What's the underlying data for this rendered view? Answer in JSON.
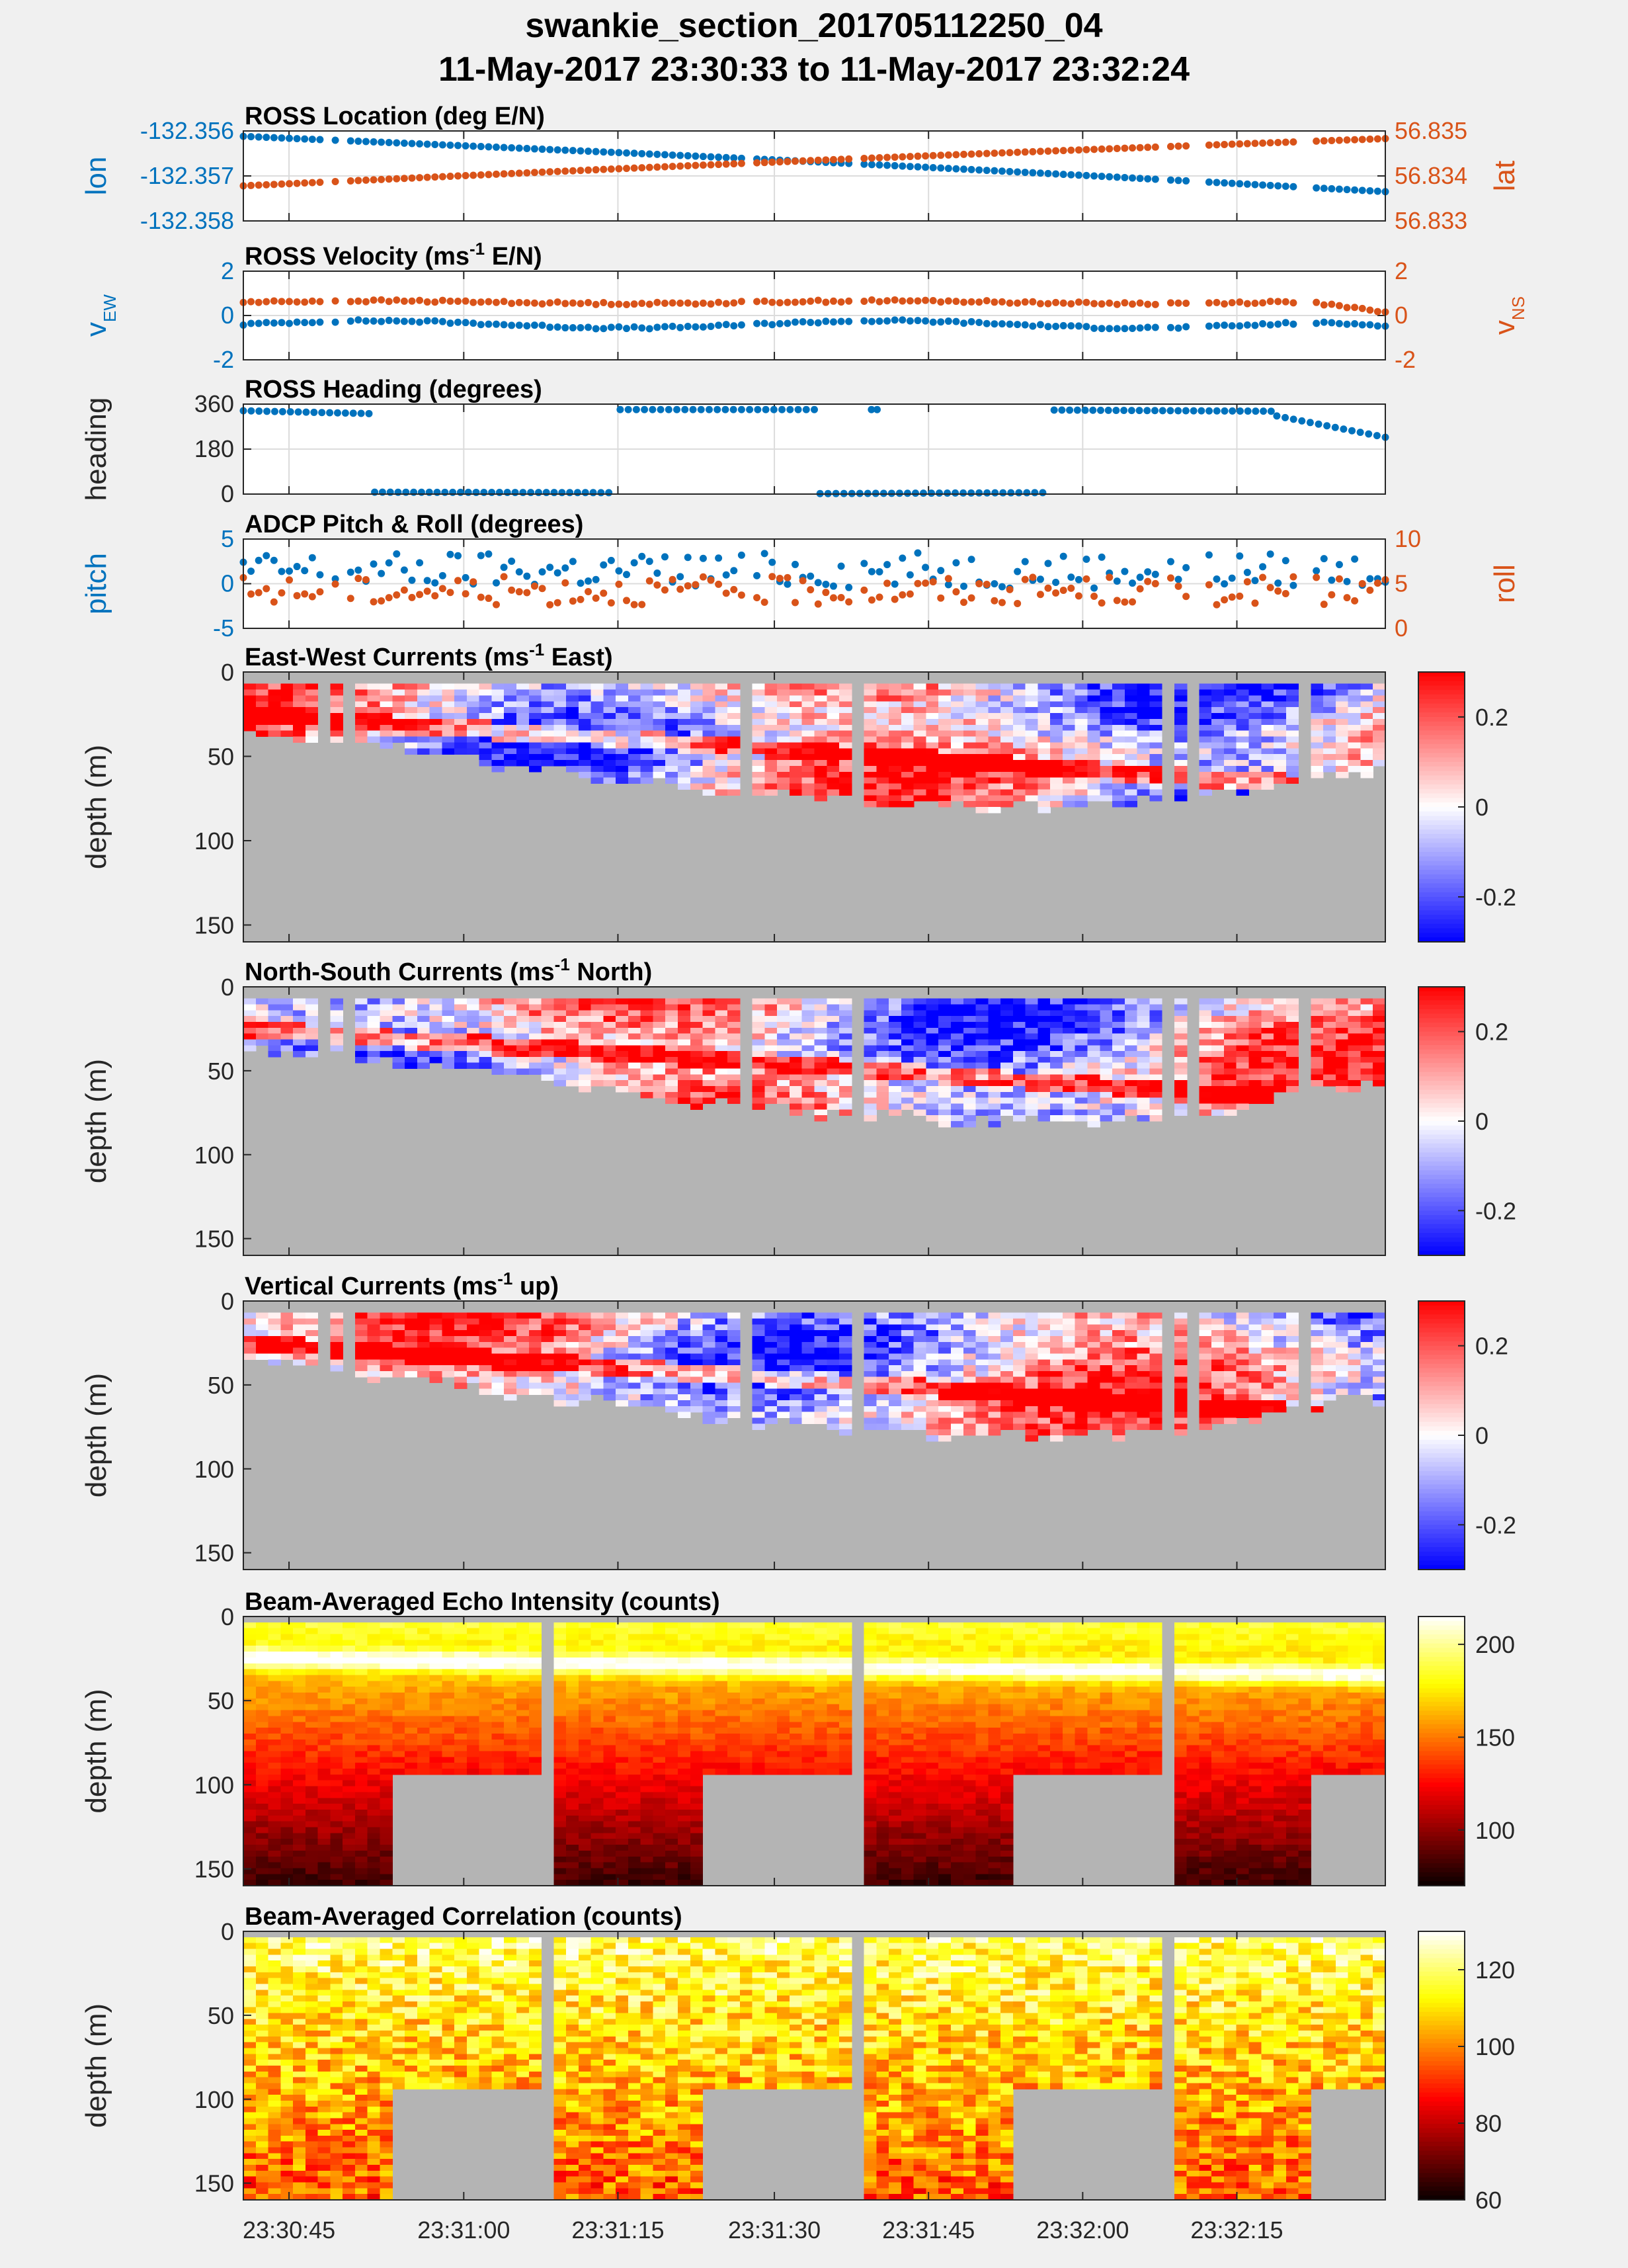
{
  "figure": {
    "title_line1": "swankie_section_201705112250_04",
    "title_line2": "11-May-2017 23:30:33 to 11-May-2017 23:32:24"
  },
  "colors": {
    "blue": "#0072bd",
    "orange": "#d95319",
    "missing": "#b4b4b4",
    "panel_bg": "#ffffff",
    "figure_bg": "#f0f0f0"
  },
  "chart_data": [
    {
      "id": "ross_location",
      "type": "scatter",
      "title": "ROSS Location (deg E/N)",
      "ylabel": "lon",
      "ylabel_right": "lat",
      "ylim": [
        -132.358,
        -132.356
      ],
      "yticks": [
        "-132.356",
        "-132.357",
        "-132.358"
      ],
      "ylim_right": [
        56.833,
        56.835
      ],
      "yticks_right": [
        "56.835",
        "56.834",
        "56.833"
      ],
      "series": [
        {
          "axis": "left",
          "color": "#0072bd",
          "start": -132.35612,
          "end": -132.35735,
          "curve": 5e-05
        },
        {
          "axis": "right",
          "color": "#d95319",
          "start": 56.83378,
          "end": 56.83483,
          "curve": 4e-05
        }
      ],
      "grid": true
    },
    {
      "id": "ross_velocity",
      "type": "scatter",
      "title_parts": [
        "ROSS Velocity (ms",
        "-1",
        " E/N)"
      ],
      "ylabel_parts": [
        "v",
        "EW"
      ],
      "ylabel_right_parts": [
        "v",
        "NS"
      ],
      "ylim": [
        -3,
        3
      ],
      "yticks": [
        "2",
        "0",
        "-2"
      ],
      "ylim_right": [
        -3,
        3
      ],
      "yticks_right": [
        "2",
        "0",
        "-2"
      ],
      "series": [
        {
          "axis": "left",
          "color": "#0072bd",
          "mean": -0.6,
          "amp": 0.4,
          "tail_to": -0.9
        },
        {
          "axis": "right",
          "color": "#d95319",
          "mean": 0.9,
          "amp": 0.15,
          "tail_to": 0.1
        }
      ],
      "grid": true
    },
    {
      "id": "ross_heading",
      "type": "scatter",
      "title": "ROSS Heading (degrees)",
      "ylabel": "heading",
      "ylim": [
        0,
        380
      ],
      "yticks": [
        "360",
        "180",
        "0"
      ],
      "segments": [
        {
          "t0": 0.0,
          "t1": 0.11,
          "y0": 352,
          "y1": 340
        },
        {
          "t0": 0.115,
          "t1": 0.32,
          "y0": 8,
          "y1": 6
        },
        {
          "t0": 0.33,
          "t1": 0.5,
          "y0": 357,
          "y1": 357
        },
        {
          "t0": 0.55,
          "t1": 0.555,
          "y0": 357,
          "y1": 357
        },
        {
          "t0": 0.505,
          "t1": 0.7,
          "y0": 2,
          "y1": 6
        },
        {
          "t0": 0.71,
          "t1": 0.9,
          "y0": 355,
          "y1": 350
        },
        {
          "t0": 0.905,
          "t1": 1.0,
          "y0": 330,
          "y1": 240
        }
      ],
      "grid": true
    },
    {
      "id": "adcp_pitch_roll",
      "type": "scatter",
      "title": "ADCP Pitch & Roll (degrees)",
      "ylabel": "pitch",
      "ylabel_right": "roll",
      "ylim": [
        -5,
        5
      ],
      "yticks": [
        "5",
        "0",
        "-5"
      ],
      "ylim_right": [
        0,
        10
      ],
      "yticks_right": [
        "10",
        "5",
        "0"
      ],
      "series": [
        {
          "axis": "left",
          "color": "#0072bd",
          "mean": 1.5,
          "spread": 2.0
        },
        {
          "axis": "right",
          "color": "#d95319",
          "mean": 4.2,
          "spread": 1.6
        }
      ],
      "grid": true
    },
    {
      "id": "ew_currents",
      "type": "heatmap",
      "title_parts": [
        "East-West Currents (ms",
        "-1",
        " East)"
      ],
      "ylabel": "depth (m)",
      "ylim": [
        0,
        160
      ],
      "yticks": [
        "0",
        "50",
        "100",
        "150"
      ],
      "colormap": "bwr",
      "clim": [
        -0.3,
        0.3
      ],
      "cbar_ticks": [
        "0.2",
        "0",
        "-0.2"
      ]
    },
    {
      "id": "ns_currents",
      "type": "heatmap",
      "title_parts": [
        "North-South Currents (ms",
        "-1",
        " North)"
      ],
      "ylabel": "depth (m)",
      "ylim": [
        0,
        160
      ],
      "yticks": [
        "0",
        "50",
        "100",
        "150"
      ],
      "colormap": "bwr",
      "clim": [
        -0.3,
        0.3
      ],
      "cbar_ticks": [
        "0.2",
        "0",
        "-0.2"
      ]
    },
    {
      "id": "vertical_currents",
      "type": "heatmap",
      "title_parts": [
        "Vertical Currents (ms",
        "-1",
        " up)"
      ],
      "ylabel": "depth (m)",
      "ylim": [
        0,
        160
      ],
      "yticks": [
        "0",
        "50",
        "100",
        "150"
      ],
      "colormap": "bwr",
      "clim": [
        -0.3,
        0.3
      ],
      "cbar_ticks": [
        "0.2",
        "0",
        "-0.2"
      ]
    },
    {
      "id": "echo_intensity",
      "type": "heatmap",
      "title": "Beam-Averaged Echo Intensity (counts)",
      "ylabel": "depth (m)",
      "ylim": [
        0,
        160
      ],
      "yticks": [
        "0",
        "50",
        "100",
        "150"
      ],
      "colormap": "hot",
      "clim": [
        70,
        215
      ],
      "cbar_ticks": [
        "200",
        "150",
        "100"
      ]
    },
    {
      "id": "correlation",
      "type": "heatmap",
      "title": "Beam-Averaged Correlation (counts)",
      "ylabel": "depth (m)",
      "ylim": [
        0,
        160
      ],
      "yticks": [
        "0",
        "50",
        "100",
        "150"
      ],
      "colormap": "hot",
      "clim": [
        60,
        130
      ],
      "cbar_ticks": [
        "120",
        "100",
        "80",
        "60"
      ]
    }
  ],
  "x_axis": {
    "tick_labels": [
      "23:30:45",
      "23:31:00",
      "23:31:15",
      "23:31:30",
      "23:31:45",
      "23:32:00",
      "23:32:15"
    ],
    "tick_fractions": [
      0.04,
      0.193,
      0.328,
      0.465,
      0.6,
      0.735,
      0.87
    ]
  },
  "bottom_depth_profile": {
    "t": [
      0.0,
      0.06,
      0.12,
      0.2,
      0.3,
      0.38,
      0.44,
      0.5,
      0.56,
      0.64,
      0.72,
      0.8,
      0.84,
      0.88,
      0.93,
      1.0
    ],
    "depth": [
      36,
      40,
      44,
      52,
      60,
      68,
      72,
      74,
      78,
      80,
      80,
      78,
      75,
      70,
      62,
      58
    ]
  },
  "ensemble_gaps": [
    0.075,
    0.088,
    0.445,
    0.535,
    0.805,
    0.835,
    0.93
  ],
  "beam_blocks": {
    "t": [
      0.0,
      0.135,
      0.27,
      0.405,
      0.54,
      0.675,
      0.81,
      0.935,
      1.0
    ],
    "full_depth": [
      true,
      false,
      true,
      false,
      true,
      false,
      true,
      false
    ]
  }
}
